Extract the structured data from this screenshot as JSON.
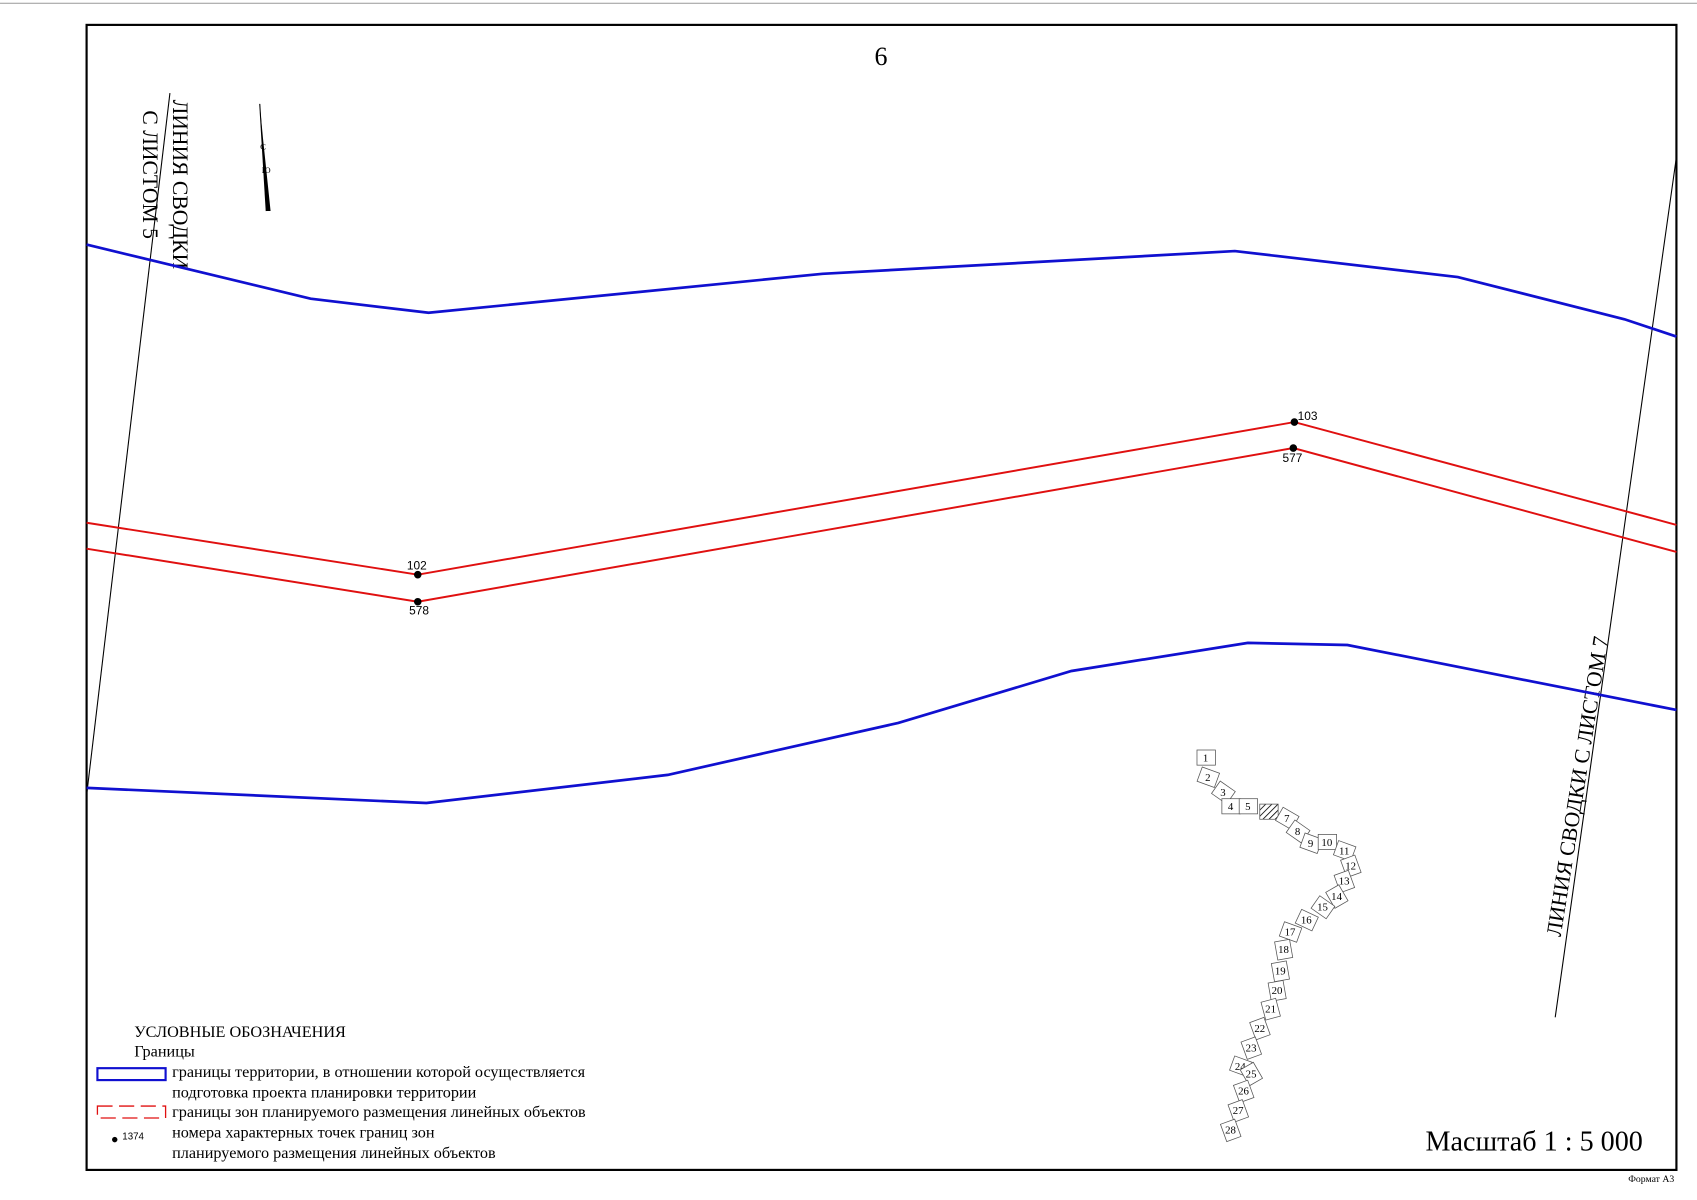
{
  "sheet_number": "6",
  "left_join_label": [
    "ЛИНИЯ СВОДКИ",
    "С ЛИСТОМ 5"
  ],
  "right_join_label": "ЛИНИЯ СВОДКИ С ЛИСТОМ 7",
  "north_arrow": {
    "north": "С",
    "south": "Ю"
  },
  "points": [
    "103",
    "577",
    "102",
    "578"
  ],
  "legend": {
    "title": "УСЛОВНЫЕ ОБОЗНАЧЕНИЯ",
    "subtitle": "Границы",
    "items": [
      {
        "lines": [
          "границы территории, в отношении которой осуществляется",
          "подготовка проекта планировки территории"
        ]
      },
      {
        "lines": [
          "границы зон планируемого размещения линейных объектов"
        ]
      },
      {
        "sample": "1374",
        "lines": [
          "номера характерных точек границ зон",
          "планируемого размещения линейных объектов"
        ]
      }
    ]
  },
  "index_map": {
    "sheets": [
      "1",
      "2",
      "3",
      "4",
      "5",
      null,
      "7",
      "8",
      "9",
      "10",
      "11",
      "12",
      "13",
      "14",
      "15",
      "16",
      "17",
      "18",
      "19",
      "20",
      "21",
      "22",
      "23",
      "24",
      "25",
      "26",
      "27",
      "28"
    ]
  },
  "scale": "Масштаб 1 : 5 000",
  "format": "Формат А3"
}
